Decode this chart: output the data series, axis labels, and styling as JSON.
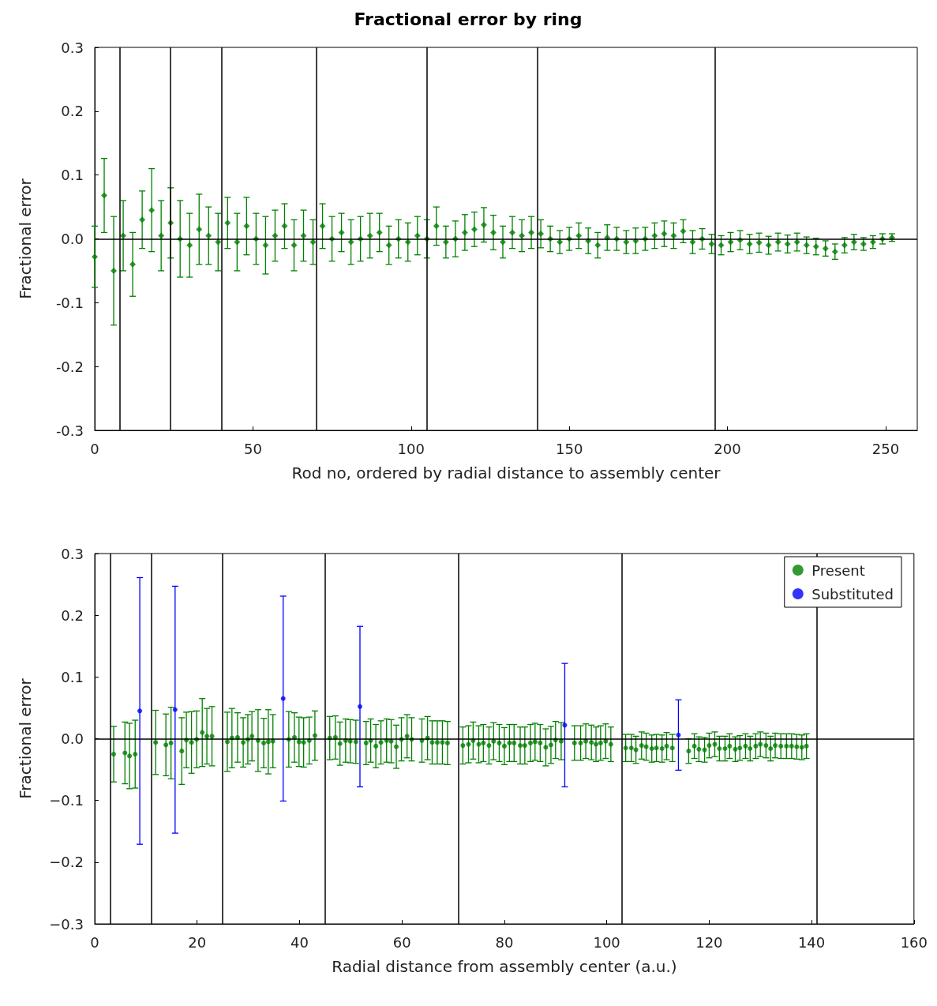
{
  "chart_data": [
    {
      "type": "scatter",
      "title": "Fractional error by ring",
      "xlabel": "Rod no, ordered by radial distance to assembly center",
      "ylabel": "Fractional error",
      "xlim": [
        0,
        260
      ],
      "xticks": [
        0,
        50,
        100,
        150,
        200,
        250
      ],
      "ylim": [
        -0.3,
        0.3
      ],
      "yticks": [
        -0.3,
        -0.2,
        -0.1,
        {
          "value": 0,
          "label": "0.0"
        },
        0.1,
        0.2,
        0.3
      ],
      "grid": false,
      "legend": false,
      "marker": "diamond",
      "ref_lines": [
        {
          "axis": "y",
          "value": 0,
          "color": "#000000"
        },
        {
          "axis": "x",
          "value": 8,
          "color": "#000000"
        },
        {
          "axis": "x",
          "value": 24,
          "color": "#000000"
        },
        {
          "axis": "x",
          "value": 40,
          "color": "#000000"
        },
        {
          "axis": "x",
          "value": 70,
          "color": "#000000"
        },
        {
          "axis": "x",
          "value": 105,
          "color": "#000000"
        },
        {
          "axis": "x",
          "value": 140,
          "color": "#000000"
        },
        {
          "axis": "x",
          "value": 196,
          "color": "#000000"
        }
      ],
      "series": [
        {
          "color": "#008000",
          "x": [
            0,
            3,
            6,
            9,
            12,
            15,
            18,
            21,
            24,
            27,
            30,
            33,
            36,
            39,
            42,
            45,
            48,
            51,
            54,
            57,
            60,
            63,
            66,
            69,
            72,
            75,
            78,
            81,
            84,
            87,
            90,
            93,
            96,
            99,
            102,
            105,
            108,
            111,
            114,
            117,
            120,
            123,
            126,
            129,
            132,
            135,
            138,
            141,
            144,
            147,
            150,
            153,
            156,
            159,
            162,
            165,
            168,
            171,
            174,
            177,
            180,
            183,
            186,
            189,
            192,
            195,
            198,
            201,
            204,
            207,
            210,
            213,
            216,
            219,
            222,
            225,
            228,
            231,
            234,
            237,
            240,
            243,
            246,
            249,
            252
          ],
          "values": [
            -0.028,
            0.068,
            -0.05,
            0.005,
            -0.04,
            0.03,
            0.045,
            0.005,
            0.025,
            0,
            -0.01,
            0.015,
            0.005,
            -0.005,
            0.025,
            -0.005,
            0.02,
            0,
            -0.01,
            0.005,
            0.02,
            -0.01,
            0.005,
            -0.005,
            0.02,
            0,
            0.01,
            -0.005,
            0,
            0.005,
            0.01,
            -0.01,
            0,
            -0.005,
            0.005,
            0,
            0.02,
            -0.005,
            0,
            0.01,
            0.015,
            0.022,
            0.01,
            -0.005,
            0.01,
            0.005,
            0.01,
            0.008,
            0,
            -0.005,
            0,
            0.005,
            -0.003,
            -0.01,
            0.002,
            0,
            -0.005,
            -0.003,
            0,
            0.005,
            0.008,
            0.005,
            0.012,
            -0.005,
            0,
            -0.008,
            -0.01,
            -0.005,
            -0.002,
            -0.008,
            -0.006,
            -0.01,
            -0.005,
            -0.008,
            -0.005,
            -0.01,
            -0.012,
            -0.015,
            -0.02,
            -0.01,
            -0.005,
            -0.008,
            -0.005,
            0,
            0.002
          ],
          "errors": [
            0.048,
            0.058,
            0.085,
            0.055,
            0.05,
            0.045,
            0.065,
            0.055,
            0.055,
            0.06,
            0.05,
            0.055,
            0.045,
            0.045,
            0.04,
            0.045,
            0.045,
            0.04,
            0.045,
            0.04,
            0.035,
            0.04,
            0.04,
            0.035,
            0.035,
            0.035,
            0.03,
            0.035,
            0.035,
            0.035,
            0.03,
            0.03,
            0.03,
            0.03,
            0.03,
            0.03,
            0.03,
            0.025,
            0.028,
            0.028,
            0.027,
            0.027,
            0.027,
            0.025,
            0.025,
            0.025,
            0.025,
            0.022,
            0.02,
            0.018,
            0.018,
            0.02,
            0.02,
            0.02,
            0.02,
            0.018,
            0.018,
            0.02,
            0.018,
            0.02,
            0.02,
            0.02,
            0.018,
            0.018,
            0.016,
            0.015,
            0.015,
            0.015,
            0.015,
            0.015,
            0.015,
            0.014,
            0.014,
            0.014,
            0.014,
            0.013,
            0.013,
            0.012,
            0.012,
            0.012,
            0.012,
            0.01,
            0.01,
            0.008,
            0.006
          ]
        }
      ]
    },
    {
      "type": "scatter",
      "xlabel": "Radial distance from assembly center (a.u.)",
      "ylabel": "Fractional error",
      "xlim": [
        0,
        160
      ],
      "xticks": [
        0,
        20,
        40,
        60,
        80,
        100,
        120,
        140,
        160
      ],
      "ylim": [
        -0.3,
        0.3
      ],
      "yticks": [
        {
          "value": -0.3,
          "label": "−0.3"
        },
        {
          "value": -0.2,
          "label": "−0.2"
        },
        {
          "value": -0.1,
          "label": "−0.1"
        },
        {
          "value": 0,
          "label": "0.0"
        },
        0.1,
        0.2,
        0.3
      ],
      "grid": false,
      "legend": "top right",
      "marker": "circle",
      "ref_lines": [
        {
          "axis": "y",
          "value": 0,
          "color": "#000000"
        },
        {
          "axis": "x",
          "value": 3,
          "color": "#000000"
        },
        {
          "axis": "x",
          "value": 11,
          "color": "#000000"
        },
        {
          "axis": "x",
          "value": 25,
          "color": "#000000"
        },
        {
          "axis": "x",
          "value": 45,
          "color": "#000000"
        },
        {
          "axis": "x",
          "value": 71,
          "color": "#000000"
        },
        {
          "axis": "x",
          "value": 103,
          "color": "#000000"
        },
        {
          "axis": "x",
          "value": 141,
          "color": "#000000"
        }
      ],
      "series": [
        {
          "name": "Present",
          "color": "#008000",
          "x": [
            3.7,
            5.9,
            6.8,
            7.9,
            11.9,
            13.9,
            14.9,
            17,
            17.9,
            18.9,
            19.9,
            21,
            21.9,
            22.9,
            25.9,
            26.8,
            27.9,
            29,
            29.9,
            30.7,
            31.9,
            33,
            33.9,
            34.8,
            37.9,
            39,
            39.9,
            40.8,
            41.9,
            43,
            45.9,
            47,
            47.9,
            49,
            49.9,
            51,
            53,
            53.9,
            54.9,
            55.9,
            57,
            57.9,
            58.9,
            59.9,
            61,
            61.9,
            63.9,
            65,
            65.9,
            66.9,
            67.9,
            68.9,
            71.9,
            73,
            73.9,
            75,
            75.9,
            77,
            77.9,
            79,
            80,
            81,
            81.9,
            83.1,
            84,
            85.1,
            86,
            87,
            88.1,
            89.1,
            90,
            91.1,
            93.7,
            94.9,
            95.9,
            97,
            97.9,
            98.8,
            99.8,
            100.8,
            103.7,
            104.8,
            105.7,
            106.8,
            107.7,
            108.8,
            109.7,
            110.8,
            111.7,
            112.8,
            116,
            117.1,
            118,
            119.1,
            120,
            121.1,
            122,
            123.1,
            124,
            125.1,
            126,
            127.1,
            128,
            129.1,
            130,
            131.1,
            132,
            132.9,
            134,
            135.1,
            136.1,
            137.1,
            138.1,
            139
          ],
          "values": [
            -0.025,
            -0.023,
            -0.028,
            -0.025,
            -0.006,
            -0.01,
            -0.007,
            -0.02,
            -0.002,
            -0.006,
            -0.001,
            0.01,
            0.004,
            0.004,
            -0.005,
            0.001,
            0.002,
            -0.006,
            -0.001,
            0.004,
            -0.003,
            -0.007,
            -0.005,
            -0.004,
            -0.001,
            0.002,
            -0.005,
            -0.006,
            -0.003,
            0.005,
            0.001,
            0.002,
            -0.008,
            -0.003,
            -0.004,
            -0.005,
            -0.007,
            -0.003,
            -0.012,
            -0.006,
            -0.003,
            -0.004,
            -0.013,
            -0.001,
            0.004,
            -0.001,
            -0.003,
            0.001,
            -0.006,
            -0.006,
            -0.006,
            -0.007,
            -0.011,
            -0.009,
            -0.003,
            -0.009,
            -0.007,
            -0.011,
            -0.004,
            -0.007,
            -0.012,
            -0.007,
            -0.007,
            -0.011,
            -0.011,
            -0.007,
            -0.005,
            -0.007,
            -0.014,
            -0.01,
            -0.002,
            -0.004,
            -0.007,
            -0.007,
            -0.004,
            -0.006,
            -0.009,
            -0.007,
            -0.004,
            -0.009,
            -0.015,
            -0.015,
            -0.018,
            -0.011,
            -0.013,
            -0.016,
            -0.015,
            -0.016,
            -0.012,
            -0.015,
            -0.02,
            -0.012,
            -0.017,
            -0.018,
            -0.011,
            -0.009,
            -0.016,
            -0.016,
            -0.012,
            -0.017,
            -0.015,
            -0.012,
            -0.016,
            -0.012,
            -0.009,
            -0.011,
            -0.016,
            -0.011,
            -0.012,
            -0.012,
            -0.012,
            -0.013,
            -0.014,
            -0.012
          ],
          "errors": [
            0.045,
            0.05,
            0.053,
            0.055,
            0.052,
            0.05,
            0.058,
            0.054,
            0.045,
            0.05,
            0.046,
            0.055,
            0.045,
            0.048,
            0.048,
            0.048,
            0.04,
            0.04,
            0.04,
            0.04,
            0.05,
            0.04,
            0.052,
            0.043,
            0.045,
            0.04,
            0.04,
            0.04,
            0.038,
            0.04,
            0.035,
            0.035,
            0.035,
            0.035,
            0.035,
            0.035,
            0.035,
            0.035,
            0.035,
            0.035,
            0.035,
            0.035,
            0.035,
            0.035,
            0.035,
            0.035,
            0.035,
            0.035,
            0.035,
            0.035,
            0.035,
            0.035,
            0.03,
            0.03,
            0.03,
            0.03,
            0.03,
            0.03,
            0.03,
            0.03,
            0.03,
            0.03,
            0.03,
            0.03,
            0.03,
            0.03,
            0.03,
            0.03,
            0.03,
            0.03,
            0.03,
            0.03,
            0.028,
            0.028,
            0.028,
            0.028,
            0.028,
            0.028,
            0.028,
            0.028,
            0.022,
            0.022,
            0.022,
            0.022,
            0.022,
            0.022,
            0.022,
            0.022,
            0.022,
            0.022,
            0.02,
            0.02,
            0.02,
            0.02,
            0.02,
            0.02,
            0.02,
            0.02,
            0.02,
            0.02,
            0.02,
            0.02,
            0.02,
            0.02,
            0.02,
            0.02,
            0.02,
            0.02,
            0.02,
            0.02,
            0.02,
            0.02,
            0.02,
            0.02
          ]
        },
        {
          "name": "Substituted",
          "color": "#0000ff",
          "x": [
            8.8,
            15.7,
            36.8,
            51.8,
            91.8,
            114
          ],
          "values": [
            0.045,
            0.047,
            0.065,
            0.052,
            0.022,
            0.006
          ],
          "errors": [
            0.216,
            0.2,
            0.166,
            0.13,
            0.1,
            0.057
          ]
        }
      ]
    }
  ]
}
